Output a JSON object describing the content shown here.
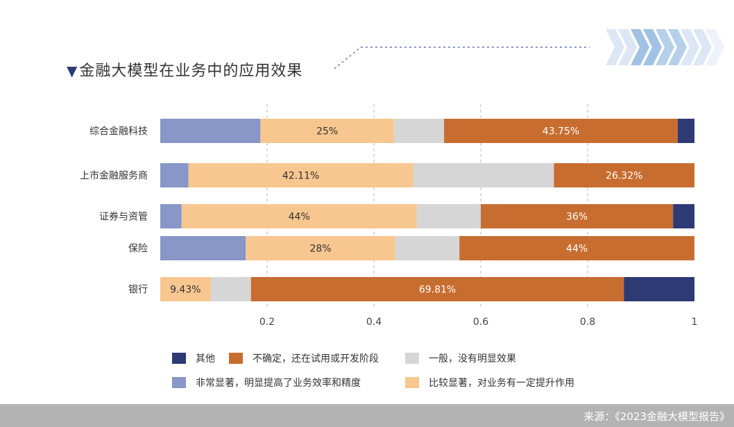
{
  "title": "金融大模型在业务中的应用效果",
  "source": "来源：《2023金融大模型报告》",
  "chart_data": {
    "type": "bar",
    "orientation": "horizontal",
    "stacked": true,
    "title": "金融大模型在业务中的应用效果",
    "categories": [
      "综合金融科技",
      "上市金融服务商",
      "证券与资管",
      "保险",
      "银行"
    ],
    "series": [
      {
        "name": "非常显著，明显提高了业务效率和精度",
        "color": "#8896c8",
        "values": [
          0.1875,
          0.0526,
          0.04,
          0.16,
          0
        ]
      },
      {
        "name": "比较显著，对业务有一定提升作用",
        "color": "#f8c68f",
        "values": [
          0.25,
          0.4211,
          0.44,
          0.28,
          0.0943
        ],
        "labels": [
          "25%",
          "42.11%",
          "44%",
          "28%",
          "9.43%"
        ]
      },
      {
        "name": "一般，没有明显效果",
        "color": "#d6d6d6",
        "values": [
          0.09375,
          0.2632,
          0.12,
          0.12,
          0.0755
        ]
      },
      {
        "name": "不确定，还在试用或开发阶段",
        "color": "#c86d30",
        "values": [
          0.4375,
          0.2632,
          0.36,
          0.44,
          0.6981
        ],
        "labels": [
          "43.75%",
          "26.32%",
          "36%",
          "44%",
          "69.81%"
        ]
      },
      {
        "name": "其他",
        "color": "#2d3a74",
        "values": [
          0.03125,
          0,
          0.04,
          0,
          0.1321
        ]
      }
    ],
    "xlim": [
      0,
      1
    ],
    "xticks": [
      "0.2",
      "0.4",
      "0.6",
      "0.8",
      "1"
    ],
    "xtick_values": [
      0.2,
      0.4,
      0.6,
      0.8,
      1
    ],
    "grid": "vertical dashed",
    "legend_order": [
      "其他",
      "不确定，还在试用或开发阶段",
      "一般，没有明显效果",
      "非常显著，明显提高了业务效率和精度",
      "比较显著，对业务有一定提升作用"
    ],
    "legend_placement": "bottom"
  }
}
